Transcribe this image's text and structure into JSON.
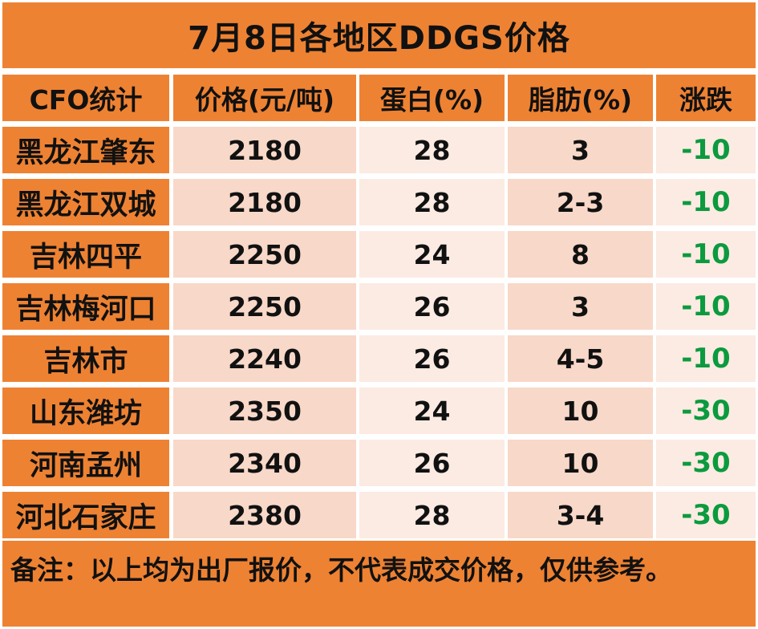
{
  "title": "7月8日各地区DDGS价格",
  "columns": [
    "CFO统计",
    "价格(元/吨)",
    "蛋白(%)",
    "脂肪(%)",
    "涨跌"
  ],
  "rows": [
    [
      "黑龙江肇东",
      "2180",
      "28",
      "3",
      "-10"
    ],
    [
      "黑龙江双城",
      "2180",
      "28",
      "2-3",
      "-10"
    ],
    [
      "吉林四平",
      "2250",
      "24",
      "8",
      "-10"
    ],
    [
      "吉林梅河口",
      "2250",
      "26",
      "3",
      "-10"
    ],
    [
      "吉林市",
      "2240",
      "26",
      "4-5",
      "-10"
    ],
    [
      "山东潍坊",
      "2350",
      "24",
      "10",
      "-30"
    ],
    [
      "河南孟州",
      "2340",
      "26",
      "10",
      "-30"
    ],
    [
      "河北石家庄",
      "2380",
      "28",
      "3-4",
      "-30"
    ]
  ],
  "note": "备注：以上均为出厂报价，不代表成交价格，仅供参考。",
  "colors": {
    "orange": "#ee8233",
    "light_row": "#fbebe3",
    "dark_row": "#f8d8c8",
    "decline": "#0c9a3e"
  }
}
